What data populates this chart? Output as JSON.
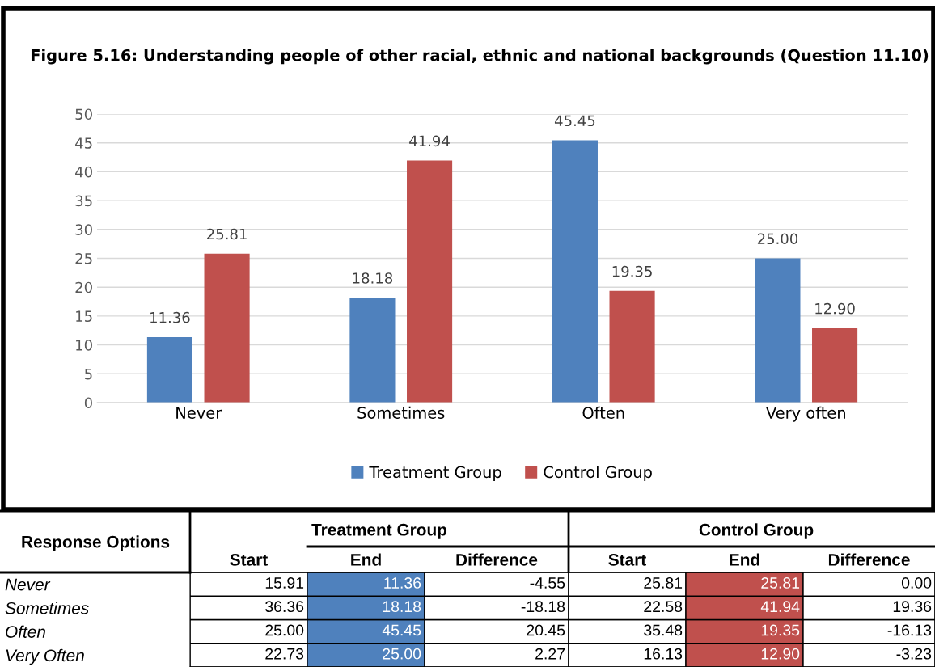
{
  "chart_data": [
    {
      "type": "bar",
      "title": "Figure 5.16: Understanding people of other racial, ethnic and national backgrounds (Question 11.10)",
      "categories": [
        "Never",
        "Sometimes",
        "Often",
        "Very often"
      ],
      "series": [
        {
          "name": "Treatment Group",
          "color": "#4f81bd",
          "values": [
            11.36,
            18.18,
            45.45,
            25.0
          ],
          "value_labels": [
            "11.36",
            "18.18",
            "45.45",
            "25.00"
          ]
        },
        {
          "name": "Control Group",
          "color": "#c0504d",
          "values": [
            25.81,
            41.94,
            19.35,
            12.9
          ],
          "value_labels": [
            "25.81",
            "41.94",
            "19.35",
            "12.90"
          ]
        }
      ],
      "ylim": [
        0,
        50
      ],
      "yticks": [
        0,
        5,
        10,
        15,
        20,
        25,
        30,
        35,
        40,
        45,
        50
      ],
      "grid": "y",
      "legend": "bottom",
      "data_labels": true
    },
    {
      "type": "heatmap",
      "ylabel": "Response Options",
      "data_labels": true,
      "annotations": [
        "Treatment Group",
        "Control Group"
      ],
      "categories": [
        "Start",
        "End",
        "Difference",
        "Start",
        "End",
        "Difference"
      ],
      "y_categories": [
        "Never",
        "Sometimes",
        "Often",
        "Very Often"
      ],
      "colors": [
        null,
        "#4f81bd",
        null,
        null,
        "#c0504d",
        null
      ],
      "cells": [
        [
          15.91,
          11.36,
          -4.55,
          25.81,
          25.81,
          0.0
        ],
        [
          36.36,
          18.18,
          -18.18,
          22.58,
          41.94,
          19.36
        ],
        [
          25.0,
          45.45,
          20.45,
          35.48,
          19.35,
          -16.13
        ],
        [
          22.73,
          25.0,
          2.27,
          16.13,
          12.9,
          -3.23
        ]
      ],
      "cell_labels": [
        [
          "15.91",
          "11.36",
          "-4.55",
          "25.81",
          "25.81",
          "0.00"
        ],
        [
          "36.36",
          "18.18",
          "-18.18",
          "22.58",
          "41.94",
          "19.36"
        ],
        [
          "25.00",
          "45.45",
          "20.45",
          "35.48",
          "19.35",
          "-16.13"
        ],
        [
          "22.73",
          "25.00",
          "2.27",
          "16.13",
          "12.90",
          "-3.23"
        ]
      ]
    }
  ]
}
